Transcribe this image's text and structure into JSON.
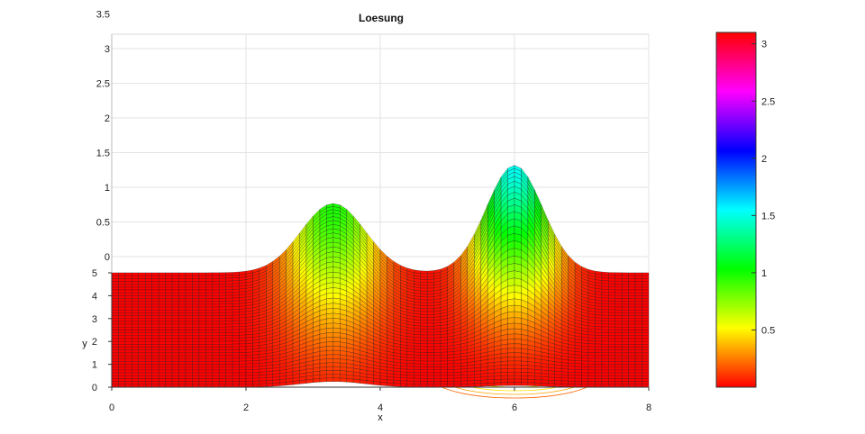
{
  "chart_data": {
    "type": "surface",
    "title": "Loesung",
    "xlabel": "x",
    "ylabel": "y",
    "zlabel": "",
    "xlim": [
      0,
      8
    ],
    "ylim": [
      0,
      5
    ],
    "zlim": [
      0,
      3.5
    ],
    "x_ticks": [
      "0",
      "2",
      "4",
      "6",
      "8"
    ],
    "y_ticks": [
      "0",
      "1",
      "2",
      "3",
      "4",
      "5"
    ],
    "z_ticks": [
      "0",
      "0.5",
      "1",
      "1.5",
      "2",
      "2.5",
      "3",
      "3.5"
    ],
    "colorbar_ticks": [
      "0.5",
      "1",
      "1.5",
      "2",
      "2.5",
      "3"
    ],
    "colorbar_range": [
      0,
      3.1
    ],
    "colormap": "hsv",
    "grid": true,
    "peaks": [
      {
        "x": 3.3,
        "y": 5,
        "z": 1.0
      },
      {
        "x": 6.0,
        "y": 5,
        "z": 1.55
      }
    ],
    "contours_on_base": true
  }
}
